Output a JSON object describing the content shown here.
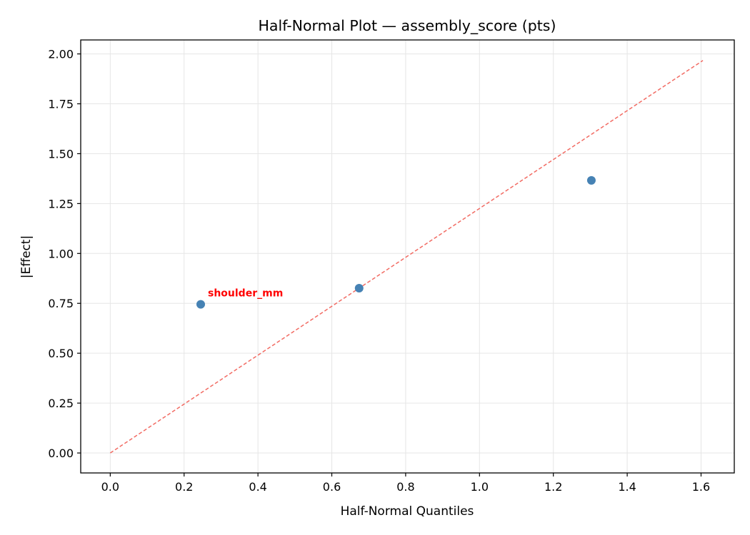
{
  "chart_data": {
    "type": "scatter",
    "title": "Half-Normal Plot — assembly_score (pts)",
    "xlabel": "Half-Normal Quantiles",
    "ylabel": "|Effect|",
    "xlim": [
      -0.08,
      1.69
    ],
    "ylim": [
      -0.1,
      2.07
    ],
    "xticks": [
      0.0,
      0.2,
      0.4,
      0.6,
      0.8,
      1.0,
      1.2,
      1.4,
      1.6
    ],
    "xtick_labels": [
      "0.0",
      "0.2",
      "0.4",
      "0.6",
      "0.8",
      "1.0",
      "1.2",
      "1.4",
      "1.6"
    ],
    "yticks": [
      0.0,
      0.25,
      0.5,
      0.75,
      1.0,
      1.25,
      1.5,
      1.75,
      2.0
    ],
    "ytick_labels": [
      "0.00",
      "0.25",
      "0.50",
      "0.75",
      "1.00",
      "1.25",
      "1.50",
      "1.75",
      "2.00"
    ],
    "grid": true,
    "points": [
      {
        "x": 0.245,
        "y": 0.745
      },
      {
        "x": 0.674,
        "y": 0.826
      },
      {
        "x": 1.303,
        "y": 1.366
      }
    ],
    "reference_line": {
      "x": [
        0.0,
        1.605
      ],
      "y": [
        0.0,
        1.967
      ],
      "style": "dashed"
    },
    "annotations": [
      {
        "text": "shoulder_mm",
        "x": 0.245,
        "y": 0.745
      }
    ],
    "colors": {
      "points": "#4682b4",
      "reference_line": "#f26b63",
      "annotation": "#ff0000",
      "grid": "#e6e6e6"
    }
  }
}
